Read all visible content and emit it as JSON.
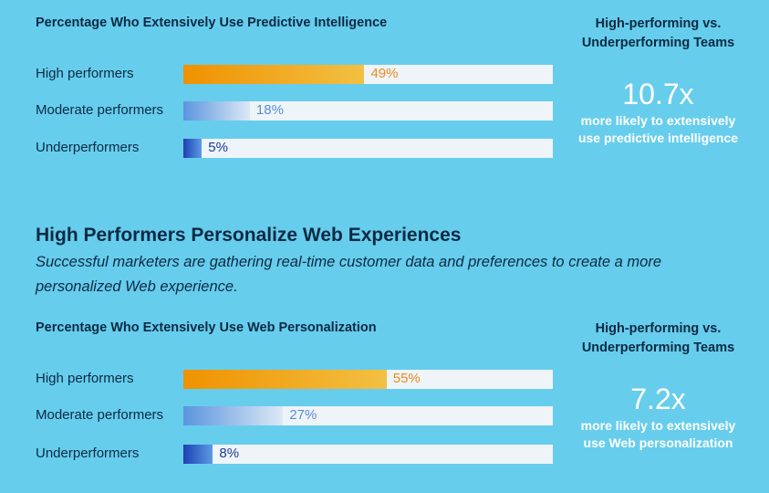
{
  "section_heading": "High Performers Personalize Web Experiences",
  "section_subtitle": "Successful marketers are gathering real-time customer data and preferences to create a more personalized Web experience.",
  "colors": {
    "background": "#67cdec",
    "high_gradient": [
      "#ef9200",
      "#f3c043"
    ],
    "high_text": "#ee8a1a",
    "moderate_gradient": [
      "#5b95df",
      "#dce9f5"
    ],
    "moderate_text": "#5b8ed6",
    "under_gradient": [
      "#1d41b2",
      "#5d9ae6"
    ],
    "under_text": "#1e3b9a",
    "track": "#eef4f8"
  },
  "chart_data": [
    {
      "type": "bar",
      "orientation": "horizontal",
      "title": "Percentage Who Extensively Use Predictive Intelligence",
      "categories": [
        "High performers",
        "Moderate performers",
        "Underperformers"
      ],
      "values": [
        49,
        18,
        5
      ],
      "value_labels": [
        "49%",
        "18%",
        "5%"
      ],
      "unit": "%",
      "xlim": [
        0,
        100
      ],
      "grid": false,
      "side_panel": {
        "heading_line1": "High-performing vs.",
        "heading_line2": "Underperforming Teams",
        "multiplier": "10.7x",
        "desc_line1": "more likely to extensively",
        "desc_line2": "use predictive intelligence"
      }
    },
    {
      "type": "bar",
      "orientation": "horizontal",
      "title": "Percentage Who Extensively Use Web Personalization",
      "categories": [
        "High performers",
        "Moderate performers",
        "Underperformers"
      ],
      "values": [
        55,
        27,
        8
      ],
      "value_labels": [
        "55%",
        "27%",
        "8%"
      ],
      "unit": "%",
      "xlim": [
        0,
        100
      ],
      "grid": false,
      "side_panel": {
        "heading_line1": "High-performing vs.",
        "heading_line2": "Underperforming Teams",
        "multiplier": "7.2x",
        "desc_line1": "more likely to extensively",
        "desc_line2": "use Web personalization"
      }
    }
  ]
}
